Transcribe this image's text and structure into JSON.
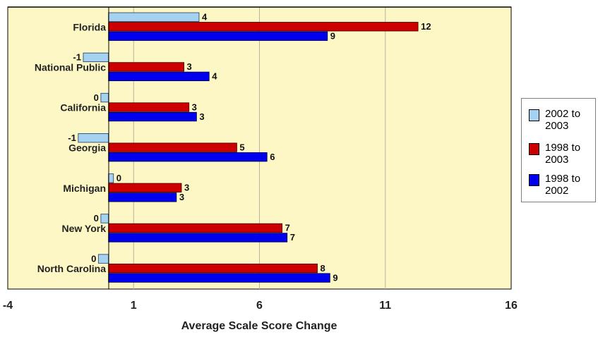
{
  "chart_data": {
    "type": "bar",
    "orientation": "horizontal",
    "title": "",
    "xlabel": "Average Scale Score Change",
    "ylabel": "",
    "xlim": [
      -4,
      16
    ],
    "xticks": [
      -4,
      1,
      6,
      11,
      16
    ],
    "grid": true,
    "legend_position": "right",
    "categories": [
      "Florida",
      "National Public",
      "California",
      "Georgia",
      "Michigan",
      "New York",
      "North Carolina"
    ],
    "series": [
      {
        "name": "2002 to 2003",
        "color": "#a6d2f2",
        "values": [
          4,
          -1,
          0,
          -1,
          0,
          0,
          0
        ],
        "display_values": [
          3.6,
          -1,
          -0.3,
          -1.2,
          0.2,
          -0.3,
          -0.4
        ]
      },
      {
        "name": "1998 to 2003",
        "color": "#cc0000",
        "values": [
          12,
          3,
          3,
          5,
          3,
          7,
          8
        ],
        "display_values": [
          12.3,
          3,
          3.2,
          5.1,
          2.9,
          6.9,
          8.3
        ]
      },
      {
        "name": "1998 to 2002",
        "color": "#0000ee",
        "values": [
          9,
          4,
          3,
          6,
          3,
          7,
          9
        ],
        "display_values": [
          8.7,
          4,
          3.5,
          6.3,
          2.7,
          7.1,
          8.8
        ]
      }
    ],
    "legend": [
      {
        "label": "2002 to 2003",
        "color": "#a6d2f2"
      },
      {
        "label": "1998 to 2003",
        "color": "#cc0000"
      },
      {
        "label": "1998 to 2002",
        "color": "#0000ee"
      }
    ],
    "plot_background": "#fcf7c5"
  }
}
